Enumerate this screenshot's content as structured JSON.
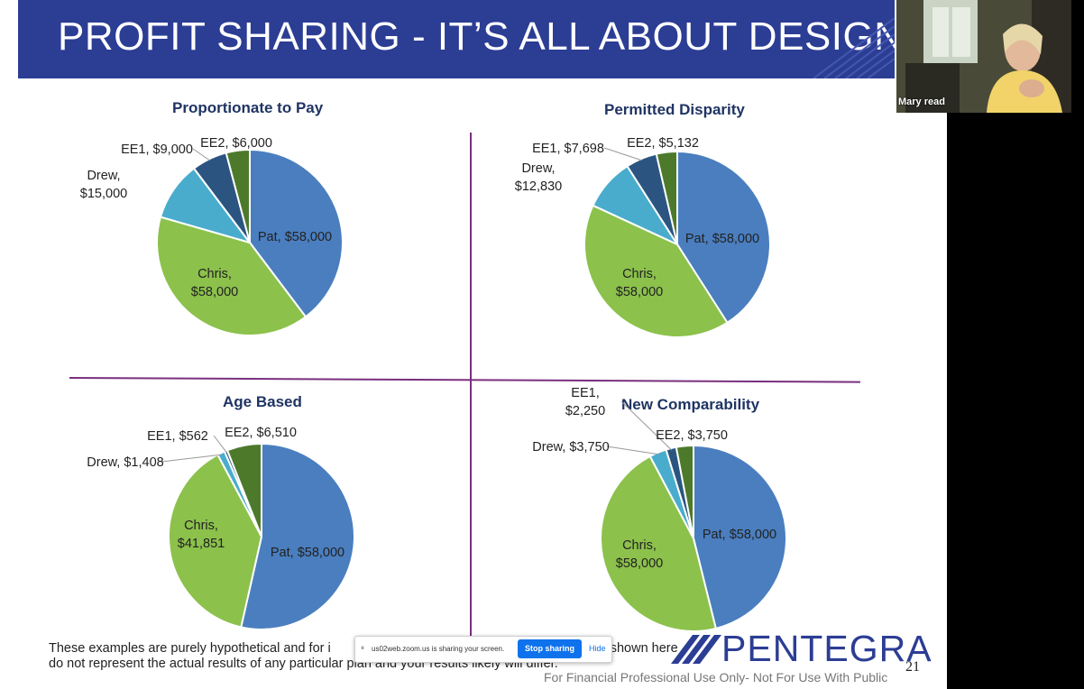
{
  "slide": {
    "title": "PROFIT SHARING - IT’S ALL ABOUT DESIGN",
    "disclaimer_line1": "These examples are purely hypothetical and for i",
    "disclaimer_line1_tail": "shown here",
    "disclaimer_line2": "do not represent the actual results of any particular plan and your results likely will differ.",
    "footer": "For Financial Professional Use Only- Not For Use With Public",
    "page_number": "21",
    "logo_text": "PENTEGRA",
    "colors": {
      "title_bar": "#2c3d94",
      "divider": "#7a2f7e",
      "chart_title": "#1f3463"
    }
  },
  "chart_data": [
    {
      "type": "pie",
      "title": "Proportionate to Pay",
      "slices": [
        {
          "label": "Pat, $58,000",
          "value": 58000,
          "color": "#4a7ebf"
        },
        {
          "label": "Chris,\n$58,000",
          "value": 58000,
          "color": "#8cc14c"
        },
        {
          "label": "Drew,\n$15,000",
          "value": 15000,
          "color": "#4aaccc"
        },
        {
          "label": "EE1, $9,000",
          "value": 9000,
          "color": "#2b5580"
        },
        {
          "label": "EE2, $6,000",
          "value": 6000,
          "color": "#4c7a2a"
        }
      ]
    },
    {
      "type": "pie",
      "title": "Permitted Disparity",
      "slices": [
        {
          "label": "Pat, $58,000",
          "value": 58000,
          "color": "#4a7ebf"
        },
        {
          "label": "Chris,\n$58,000",
          "value": 58000,
          "color": "#8cc14c"
        },
        {
          "label": "Drew,\n$12,830",
          "value": 12830,
          "color": "#4aaccc"
        },
        {
          "label": "EE1, $7,698",
          "value": 7698,
          "color": "#2b5580"
        },
        {
          "label": "EE2, $5,132",
          "value": 5132,
          "color": "#4c7a2a"
        }
      ]
    },
    {
      "type": "pie",
      "title": "Age Based",
      "slices": [
        {
          "label": "Pat, $58,000",
          "value": 58000,
          "color": "#4a7ebf"
        },
        {
          "label": "Chris,\n$41,851",
          "value": 41851,
          "color": "#8cc14c"
        },
        {
          "label": "Drew, $1,408",
          "value": 1408,
          "color": "#4aaccc"
        },
        {
          "label": "EE1, $562",
          "value": 562,
          "color": "#2b5580"
        },
        {
          "label": "EE2, $6,510",
          "value": 6510,
          "color": "#4c7a2a"
        }
      ]
    },
    {
      "type": "pie",
      "title": "New Comparability",
      "slices": [
        {
          "label": "Pat, $58,000",
          "value": 58000,
          "color": "#4a7ebf"
        },
        {
          "label": "Chris,\n$58,000",
          "value": 58000,
          "color": "#8cc14c"
        },
        {
          "label": "Drew, $3,750",
          "value": 3750,
          "color": "#4aaccc"
        },
        {
          "label": "EE1,\n$2,250",
          "value": 2250,
          "color": "#2b5580"
        },
        {
          "label": "EE2, $3,750",
          "value": 3750,
          "color": "#4c7a2a"
        }
      ]
    }
  ],
  "zoom_share_bar": {
    "message": "us02web.zoom.us is sharing your screen.",
    "stop_label": "Stop sharing",
    "hide_label": "Hide"
  },
  "video_tile": {
    "participant_name": "Mary read"
  }
}
